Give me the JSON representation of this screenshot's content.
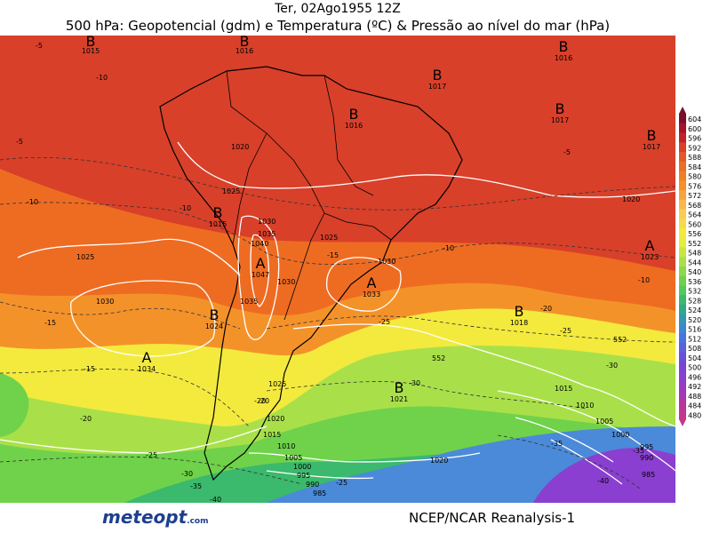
{
  "header": {
    "date_time": "Ter, 02Ago1955 12Z",
    "description": "500 hPa: Geopotencial (gdm) e Temperatura (ºC) & Pressão ao nível do mar (hPa)"
  },
  "colors": {
    "ocean_warm": "#d8402a",
    "zone_orange": "#ee6c22",
    "zone_orange_light": "#f4922a",
    "zone_yellow": "#f3ea3d",
    "zone_lightgreen": "#a9e04a",
    "zone_green": "#6fd24a",
    "zone_teal": "#2fb06a",
    "zone_blue": "#4a8ad8",
    "zone_purple": "#8a3fd0",
    "contour": "#ffffff",
    "coast": "#000000"
  },
  "colorbar": {
    "levels": [
      "604",
      "600",
      "596",
      "592",
      "588",
      "584",
      "580",
      "576",
      "572",
      "568",
      "564",
      "560",
      "556",
      "552",
      "548",
      "544",
      "540",
      "536",
      "532",
      "528",
      "524",
      "520",
      "516",
      "512",
      "508",
      "504",
      "500",
      "496",
      "492",
      "488",
      "484",
      "480"
    ],
    "colors": [
      "#7a0f2a",
      "#a3142a",
      "#c22028",
      "#d8402a",
      "#e35a26",
      "#ec6e22",
      "#f27f24",
      "#f5902a",
      "#f7a33a",
      "#f8b84a",
      "#f9cc52",
      "#f4dc4a",
      "#f3ea3d",
      "#e4ee3c",
      "#c6e641",
      "#a9e04a",
      "#8dd84c",
      "#6fd24a",
      "#55c85c",
      "#3bb96c",
      "#2fa98a",
      "#3597b0",
      "#3f86cf",
      "#4a73de",
      "#5b60dc",
      "#6a4fd8",
      "#7a44d2",
      "#8a3fd0",
      "#9a39c4",
      "#a837b2",
      "#b6369e",
      "#c4378b"
    ]
  },
  "pressure_centers": [
    {
      "type": "B",
      "value": "1015"
    },
    {
      "type": "B",
      "value": "1016"
    },
    {
      "type": "B",
      "value": "1016"
    },
    {
      "type": "B",
      "value": "1017"
    },
    {
      "type": "B",
      "value": "1017"
    },
    {
      "type": "B",
      "value": "1016"
    },
    {
      "type": "B",
      "value": "1017"
    },
    {
      "type": "B",
      "value": "1015"
    },
    {
      "type": "A",
      "value": "1047"
    },
    {
      "type": "A",
      "value": "1033"
    },
    {
      "type": "B",
      "value": "1024"
    },
    {
      "type": "A",
      "value": "1034"
    },
    {
      "type": "B",
      "value": "1018"
    },
    {
      "type": "A",
      "value": "1023"
    },
    {
      "type": "B",
      "value": "1021"
    }
  ],
  "isobar_labels": [
    "1020",
    "1025",
    "1030",
    "1035",
    "1040",
    "1025",
    "1030",
    "1035",
    "1030",
    "1025",
    "1020",
    "1015",
    "1010",
    "1005",
    "1000",
    "995",
    "990",
    "985",
    "1020",
    "1025",
    "1030",
    "1010",
    "1005",
    "1000",
    "995",
    "990",
    "985",
    "1015",
    "1020"
  ],
  "temp_labels": [
    "-5",
    "-5",
    "-10",
    "-10",
    "-10",
    "-15",
    "-15",
    "-15",
    "-20",
    "-20",
    "-20",
    "-25",
    "-25",
    "-25",
    "-30",
    "-30",
    "-35",
    "-35",
    "-40",
    "-5",
    "-10",
    "-10",
    "-20",
    "-25",
    "-30",
    "-35",
    "-40"
  ],
  "geopotential_labels": [
    "552",
    "552"
  ],
  "footer": {
    "logo_text": "meteopt",
    "logo_suffix": ".com",
    "credit": "NCEP/NCAR Reanalysis-1"
  }
}
